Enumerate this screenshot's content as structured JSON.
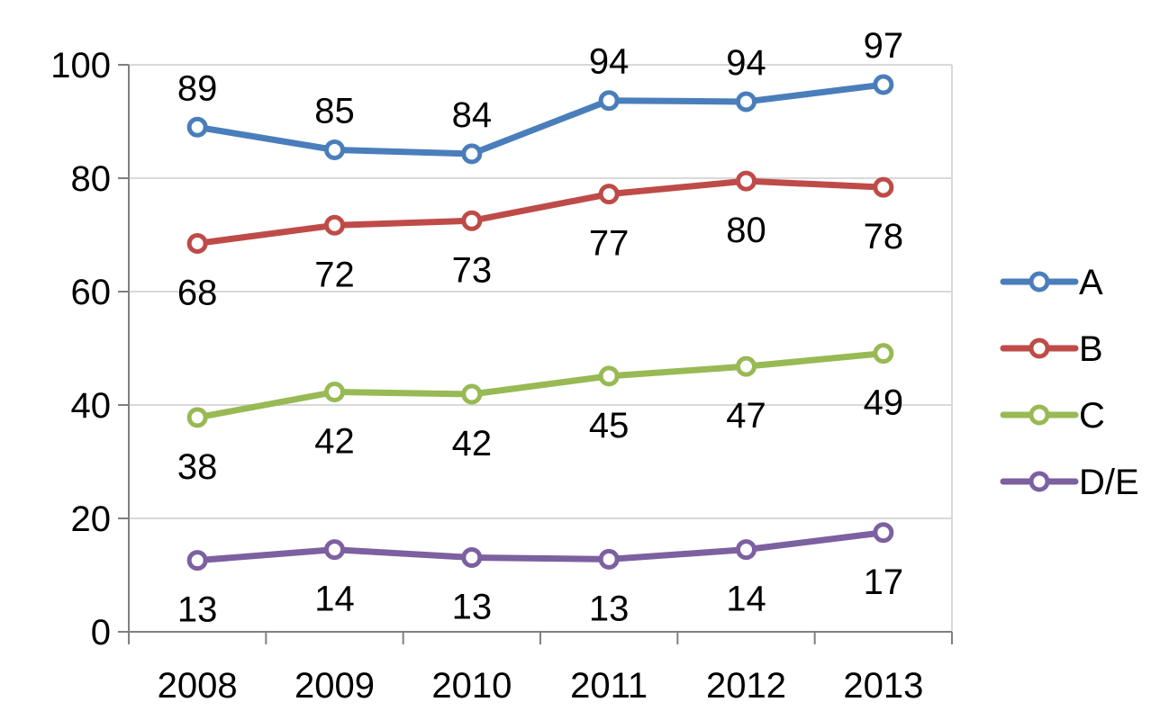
{
  "chart_data": {
    "type": "line",
    "categories": [
      "2008",
      "2009",
      "2010",
      "2011",
      "2012",
      "2013"
    ],
    "ylim": [
      0,
      100
    ],
    "y_ticks": [
      "0",
      "20",
      "40",
      "60",
      "80",
      "100"
    ],
    "grid": true,
    "legend_position": "right",
    "series": [
      {
        "name": "A",
        "color": "#4a7ebb",
        "values": [
          89,
          85,
          84.3,
          93.7,
          93.5,
          96.5
        ],
        "labels": [
          "89",
          "85",
          "84",
          "94",
          "94",
          "97"
        ],
        "label_position": "above"
      },
      {
        "name": "B",
        "color": "#be4b48",
        "values": [
          68.5,
          71.7,
          72.5,
          77.2,
          79.5,
          78.4
        ],
        "labels": [
          "68",
          "72",
          "73",
          "77",
          "80",
          "78"
        ],
        "label_position": "below"
      },
      {
        "name": "C",
        "color": "#98b954",
        "values": [
          37.8,
          42.3,
          41.9,
          45.1,
          46.8,
          49.1
        ],
        "labels": [
          "38",
          "42",
          "42",
          "45",
          "47",
          "49"
        ],
        "label_position": "below"
      },
      {
        "name": "D/E",
        "color": "#7d60a0",
        "values": [
          12.6,
          14.5,
          13.1,
          12.8,
          14.5,
          17.5
        ],
        "labels": [
          "13",
          "14",
          "13",
          "13",
          "14",
          "17"
        ],
        "label_position": "below"
      }
    ]
  }
}
